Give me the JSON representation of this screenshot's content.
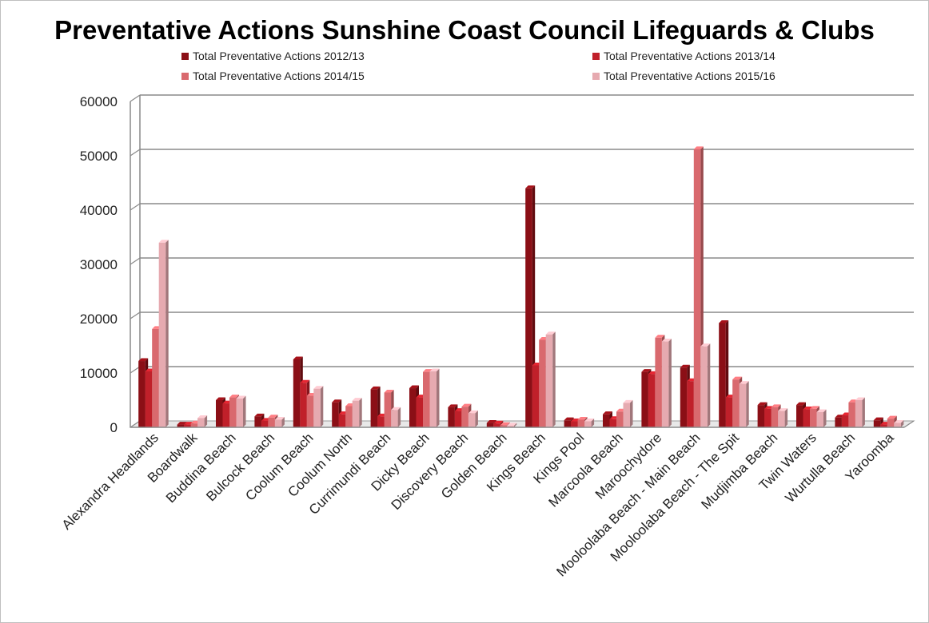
{
  "chart_data": {
    "type": "bar",
    "title": "Preventative Actions Sunshine Coast Council Lifeguards & Clubs",
    "xlabel": "",
    "ylabel": "",
    "ylim": [
      0,
      60000
    ],
    "yticks": [
      "0",
      "10000",
      "20000",
      "30000",
      "40000",
      "50000",
      "60000"
    ],
    "grid": true,
    "legend_position": "top",
    "categories": [
      "Alexandra Headlands",
      "Boardwalk",
      "Buddina Beach",
      "Bulcock Beach",
      "Coolum Beach",
      "Coolum North",
      "Currimundi Beach",
      "Dicky Beach",
      "Discovery Beach",
      "Golden Beach",
      "Kings Beach",
      "Kings Pool",
      "Marcoola Beach",
      "Maroochydore",
      "Mooloolaba Beach - Main Beach",
      "Mooloolaba Beach - The Spit",
      "Mudjimba Beach",
      "Twin Waters",
      "Wurtulla Beach",
      "Yaroomba"
    ],
    "series": [
      {
        "name": "Total Preventative Actions 2012/13",
        "color": "#8b0f16",
        "values": [
          12200,
          500,
          5000,
          2000,
          12500,
          4600,
          7000,
          7200,
          3700,
          800,
          44000,
          1300,
          2400,
          10200,
          11000,
          19200,
          4100,
          4100,
          1800,
          1300
        ]
      },
      {
        "name": "Total Preventative Actions 2013/14",
        "color": "#c0202a",
        "values": [
          10300,
          500,
          4400,
          1200,
          8200,
          2400,
          2000,
          5500,
          3000,
          700,
          11400,
          1100,
          1500,
          9800,
          8500,
          5500,
          3400,
          3300,
          2200,
          500
        ]
      },
      {
        "name": "Total Preventative Actions 2014/15",
        "color": "#d9696e",
        "values": [
          18100,
          700,
          5500,
          1800,
          5800,
          3900,
          6400,
          10200,
          3800,
          400,
          16100,
          1400,
          2900,
          16500,
          51200,
          8800,
          3700,
          3400,
          4600,
          1600
        ]
      },
      {
        "name": "Total Preventative Actions 2015/16",
        "color": "#e6aab0",
        "values": [
          34000,
          1700,
          5300,
          1400,
          7100,
          4900,
          3200,
          10300,
          2600,
          300,
          17100,
          1100,
          4500,
          15800,
          14900,
          8000,
          3000,
          2800,
          5000,
          800
        ]
      }
    ]
  }
}
